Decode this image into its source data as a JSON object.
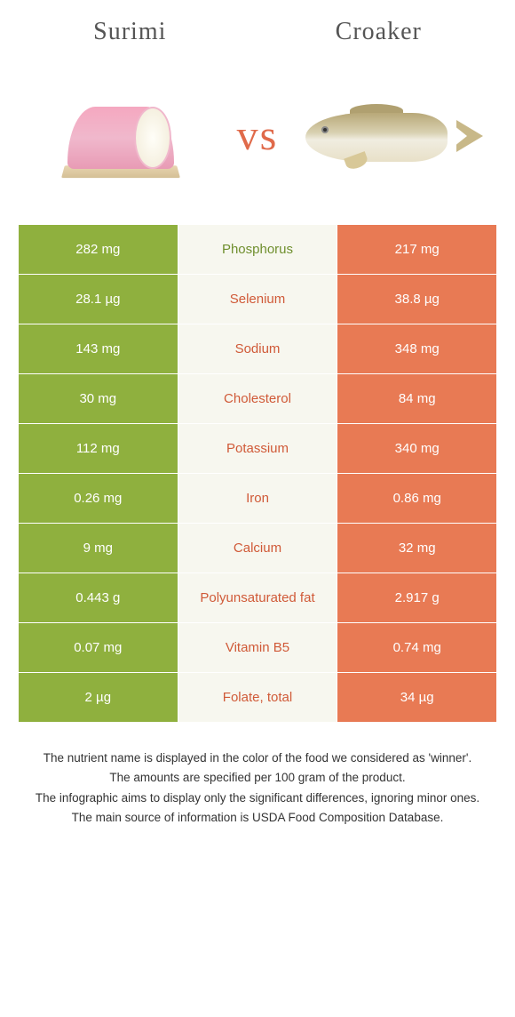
{
  "header": {
    "left_title": "Surimi",
    "right_title": "Croaker",
    "vs_text": "vs"
  },
  "colors": {
    "left_cell_bg": "#8fb03e",
    "right_cell_bg": "#e87a54",
    "mid_cell_bg": "#f7f7ef",
    "left_winner_text": "#6f8f2e",
    "right_winner_text": "#d05a38",
    "cell_text": "#ffffff"
  },
  "rows": [
    {
      "left": "282 mg",
      "mid": "Phosphorus",
      "right": "217 mg",
      "winner": "left"
    },
    {
      "left": "28.1 µg",
      "mid": "Selenium",
      "right": "38.8 µg",
      "winner": "right"
    },
    {
      "left": "143 mg",
      "mid": "Sodium",
      "right": "348 mg",
      "winner": "right"
    },
    {
      "left": "30 mg",
      "mid": "Cholesterol",
      "right": "84 mg",
      "winner": "right"
    },
    {
      "left": "112 mg",
      "mid": "Potassium",
      "right": "340 mg",
      "winner": "right"
    },
    {
      "left": "0.26 mg",
      "mid": "Iron",
      "right": "0.86 mg",
      "winner": "right"
    },
    {
      "left": "9 mg",
      "mid": "Calcium",
      "right": "32 mg",
      "winner": "right"
    },
    {
      "left": "0.443 g",
      "mid": "Polyunsaturated fat",
      "right": "2.917 g",
      "winner": "right"
    },
    {
      "left": "0.07 mg",
      "mid": "Vitamin B5",
      "right": "0.74 mg",
      "winner": "right"
    },
    {
      "left": "2 µg",
      "mid": "Folate, total",
      "right": "34 µg",
      "winner": "right"
    }
  ],
  "footer": {
    "line1": "The nutrient name is displayed in the color of the food we considered as 'winner'.",
    "line2": "The amounts are specified per 100 gram of the product.",
    "line3": "The infographic aims to display only the significant differences, ignoring minor ones.",
    "line4": "The main source of information is USDA Food Composition Database."
  }
}
